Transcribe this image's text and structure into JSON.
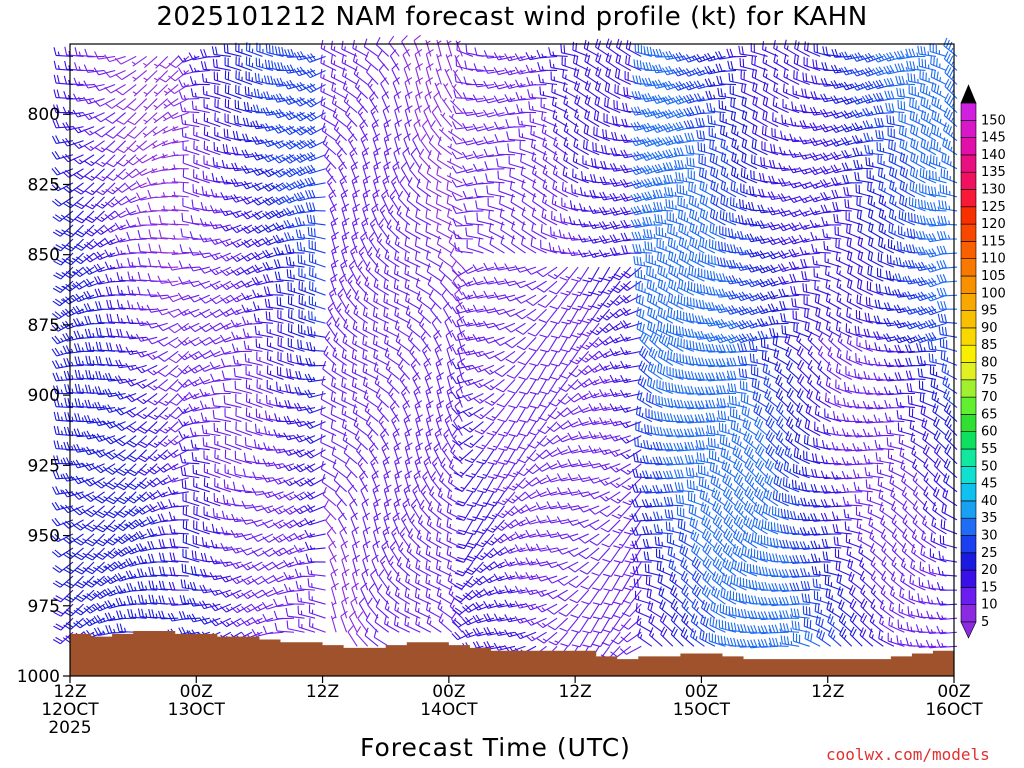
{
  "title": "2025101212 NAM forecast wind profile (kt) for KAHN",
  "credit": "coolwx.com/models",
  "chart_data": {
    "type": "wind_barb_profile",
    "xlabel": "Forecast Time (UTC)",
    "ylabel": "",
    "x_range_hours": [
      0,
      84
    ],
    "y_range_hPa": [
      775,
      1000
    ],
    "y_reversed": true,
    "y_ticks": [
      {
        "value": 800,
        "label": "800"
      },
      {
        "value": 825,
        "label": "825"
      },
      {
        "value": 850,
        "label": "850"
      },
      {
        "value": 875,
        "label": "875"
      },
      {
        "value": 900,
        "label": "900"
      },
      {
        "value": 925,
        "label": "925"
      },
      {
        "value": 950,
        "label": "950"
      },
      {
        "value": 975,
        "label": "975"
      },
      {
        "value": 1000,
        "label": "1000"
      }
    ],
    "x_ticks": [
      {
        "hour": 0,
        "line1": "12Z",
        "line2": "12OCT",
        "line3": "2025"
      },
      {
        "hour": 12,
        "line1": "00Z",
        "line2": "13OCT",
        "line3": ""
      },
      {
        "hour": 24,
        "line1": "12Z",
        "line2": "",
        "line3": ""
      },
      {
        "hour": 36,
        "line1": "00Z",
        "line2": "14OCT",
        "line3": ""
      },
      {
        "hour": 48,
        "line1": "12Z",
        "line2": "",
        "line3": ""
      },
      {
        "hour": 60,
        "line1": "00Z",
        "line2": "15OCT",
        "line3": ""
      },
      {
        "hour": 72,
        "line1": "12Z",
        "line2": "",
        "line3": ""
      },
      {
        "hour": 84,
        "line1": "00Z",
        "line2": "16OCT",
        "line3": ""
      }
    ],
    "surface_pressure_hPa": {
      "hours": [
        0,
        2,
        4,
        6,
        8,
        10,
        12,
        14,
        16,
        18,
        20,
        22,
        24,
        26,
        28,
        30,
        32,
        34,
        36,
        38,
        40,
        42,
        44,
        46,
        48,
        50,
        52,
        54,
        56,
        58,
        60,
        62,
        64,
        66,
        68,
        70,
        72,
        74,
        76,
        78,
        80,
        82,
        84
      ],
      "values": [
        985,
        986,
        985,
        984,
        984,
        985,
        985,
        986,
        986,
        987,
        988,
        988,
        989,
        990,
        990,
        989,
        988,
        988,
        989,
        990,
        991,
        991,
        991,
        991,
        991,
        993,
        994,
        993,
        993,
        992,
        992,
        993,
        994,
        994,
        994,
        994,
        994,
        994,
        994,
        993,
        992,
        991,
        991
      ]
    },
    "surface_color": "#a0522d",
    "barb_grid": {
      "hour_step": 1,
      "pressure_step_hPa": 5
    },
    "wind_regimes": [
      {
        "hours": [
          0,
          12
        ],
        "levels": "all",
        "direction_deg": 250,
        "speed_kt": [
          5,
          25
        ],
        "note": "westerly, strongest aloft"
      },
      {
        "hours": [
          12,
          25
        ],
        "levels": "all",
        "direction_deg": 265,
        "speed_kt": [
          10,
          30
        ]
      },
      {
        "hours": [
          25,
          38
        ],
        "levels": "all",
        "direction_deg": 320,
        "speed_kt": [
          5,
          15
        ],
        "note": "light northwesterly"
      },
      {
        "hours": [
          38,
          55
        ],
        "levels": "below 850",
        "direction_deg": 235,
        "speed_kt": [
          10,
          20
        ],
        "note": "southwesterly"
      },
      {
        "hours": [
          38,
          55
        ],
        "levels": "above 850",
        "direction_deg": 280,
        "speed_kt": [
          10,
          20
        ]
      },
      {
        "hours": [
          55,
          84
        ],
        "levels": "above 880",
        "direction_deg": 275,
        "speed_kt": [
          15,
          35
        ]
      },
      {
        "hours": [
          55,
          84
        ],
        "levels": "below 880",
        "direction_deg": 290,
        "speed_kt": [
          10,
          35
        ]
      }
    ],
    "colorbar": {
      "levels": [
        5,
        10,
        15,
        20,
        25,
        30,
        35,
        40,
        45,
        50,
        55,
        60,
        65,
        70,
        75,
        80,
        85,
        90,
        95,
        100,
        105,
        110,
        115,
        120,
        125,
        130,
        135,
        140,
        145,
        150
      ],
      "colors": [
        "#8a2be2",
        "#6a1ef0",
        "#3a10e8",
        "#1a1ae0",
        "#1a40f0",
        "#1f6cf5",
        "#1aa0f0",
        "#10c0f0",
        "#10e0d0",
        "#10e8a0",
        "#10e060",
        "#30e030",
        "#60f030",
        "#a0f030",
        "#e0f020",
        "#f8f000",
        "#f8d800",
        "#f8c000",
        "#f8a800",
        "#f89000",
        "#f87800",
        "#f86000",
        "#f84800",
        "#f83000",
        "#f81838",
        "#f01060",
        "#e81080",
        "#e010a8",
        "#d818c8",
        "#d020e0"
      ],
      "top_color": "#000000",
      "bottom_color": "#8a2be2"
    }
  }
}
